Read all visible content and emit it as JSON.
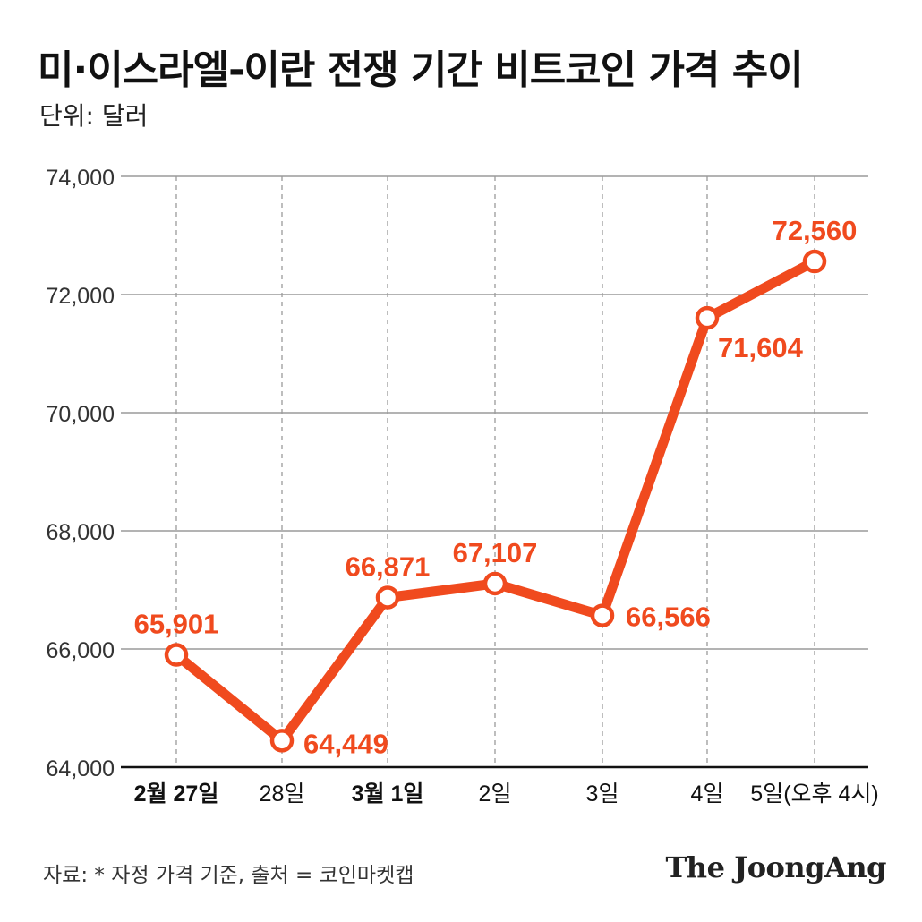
{
  "title": "미·이스라엘-이란 전쟁 기간 비트코인 가격 추이",
  "unit_label": "단위: 달러",
  "footer": "자료: * 자정 가격 기준, 출처 = 코인마켓캡",
  "logo": "The JoongAng",
  "chart_data": {
    "type": "line",
    "title": "미·이스라엘-이란 전쟁 기간 비트코인 가격 추이",
    "ylabel": "단위: 달러",
    "xlabel": "",
    "categories": [
      "2월 27일",
      "28일",
      "3월 1일",
      "2일",
      "3일",
      "4일",
      "5일(오후 4시)"
    ],
    "bold_categories": [
      "2월 27일",
      "3월 1일"
    ],
    "series": [
      {
        "name": "비트코인 가격",
        "values": [
          65901,
          64449,
          66871,
          67107,
          66566,
          71604,
          72560
        ]
      }
    ],
    "data_labels": [
      "65,901",
      "64,449",
      "66,871",
      "67,107",
      "66,566",
      "71,604",
      "72,560"
    ],
    "ylim": [
      64000,
      74000
    ],
    "yticks": [
      64000,
      66000,
      68000,
      70000,
      72000,
      74000
    ],
    "ytick_labels": [
      "64,000",
      "66,000",
      "68,000",
      "70,000",
      "72,000",
      "74,000"
    ],
    "grid": true,
    "colors": {
      "line": "#f04a1e",
      "grid": "#9a9a9a",
      "axis": "#111111",
      "label": "#f04a1e"
    }
  }
}
